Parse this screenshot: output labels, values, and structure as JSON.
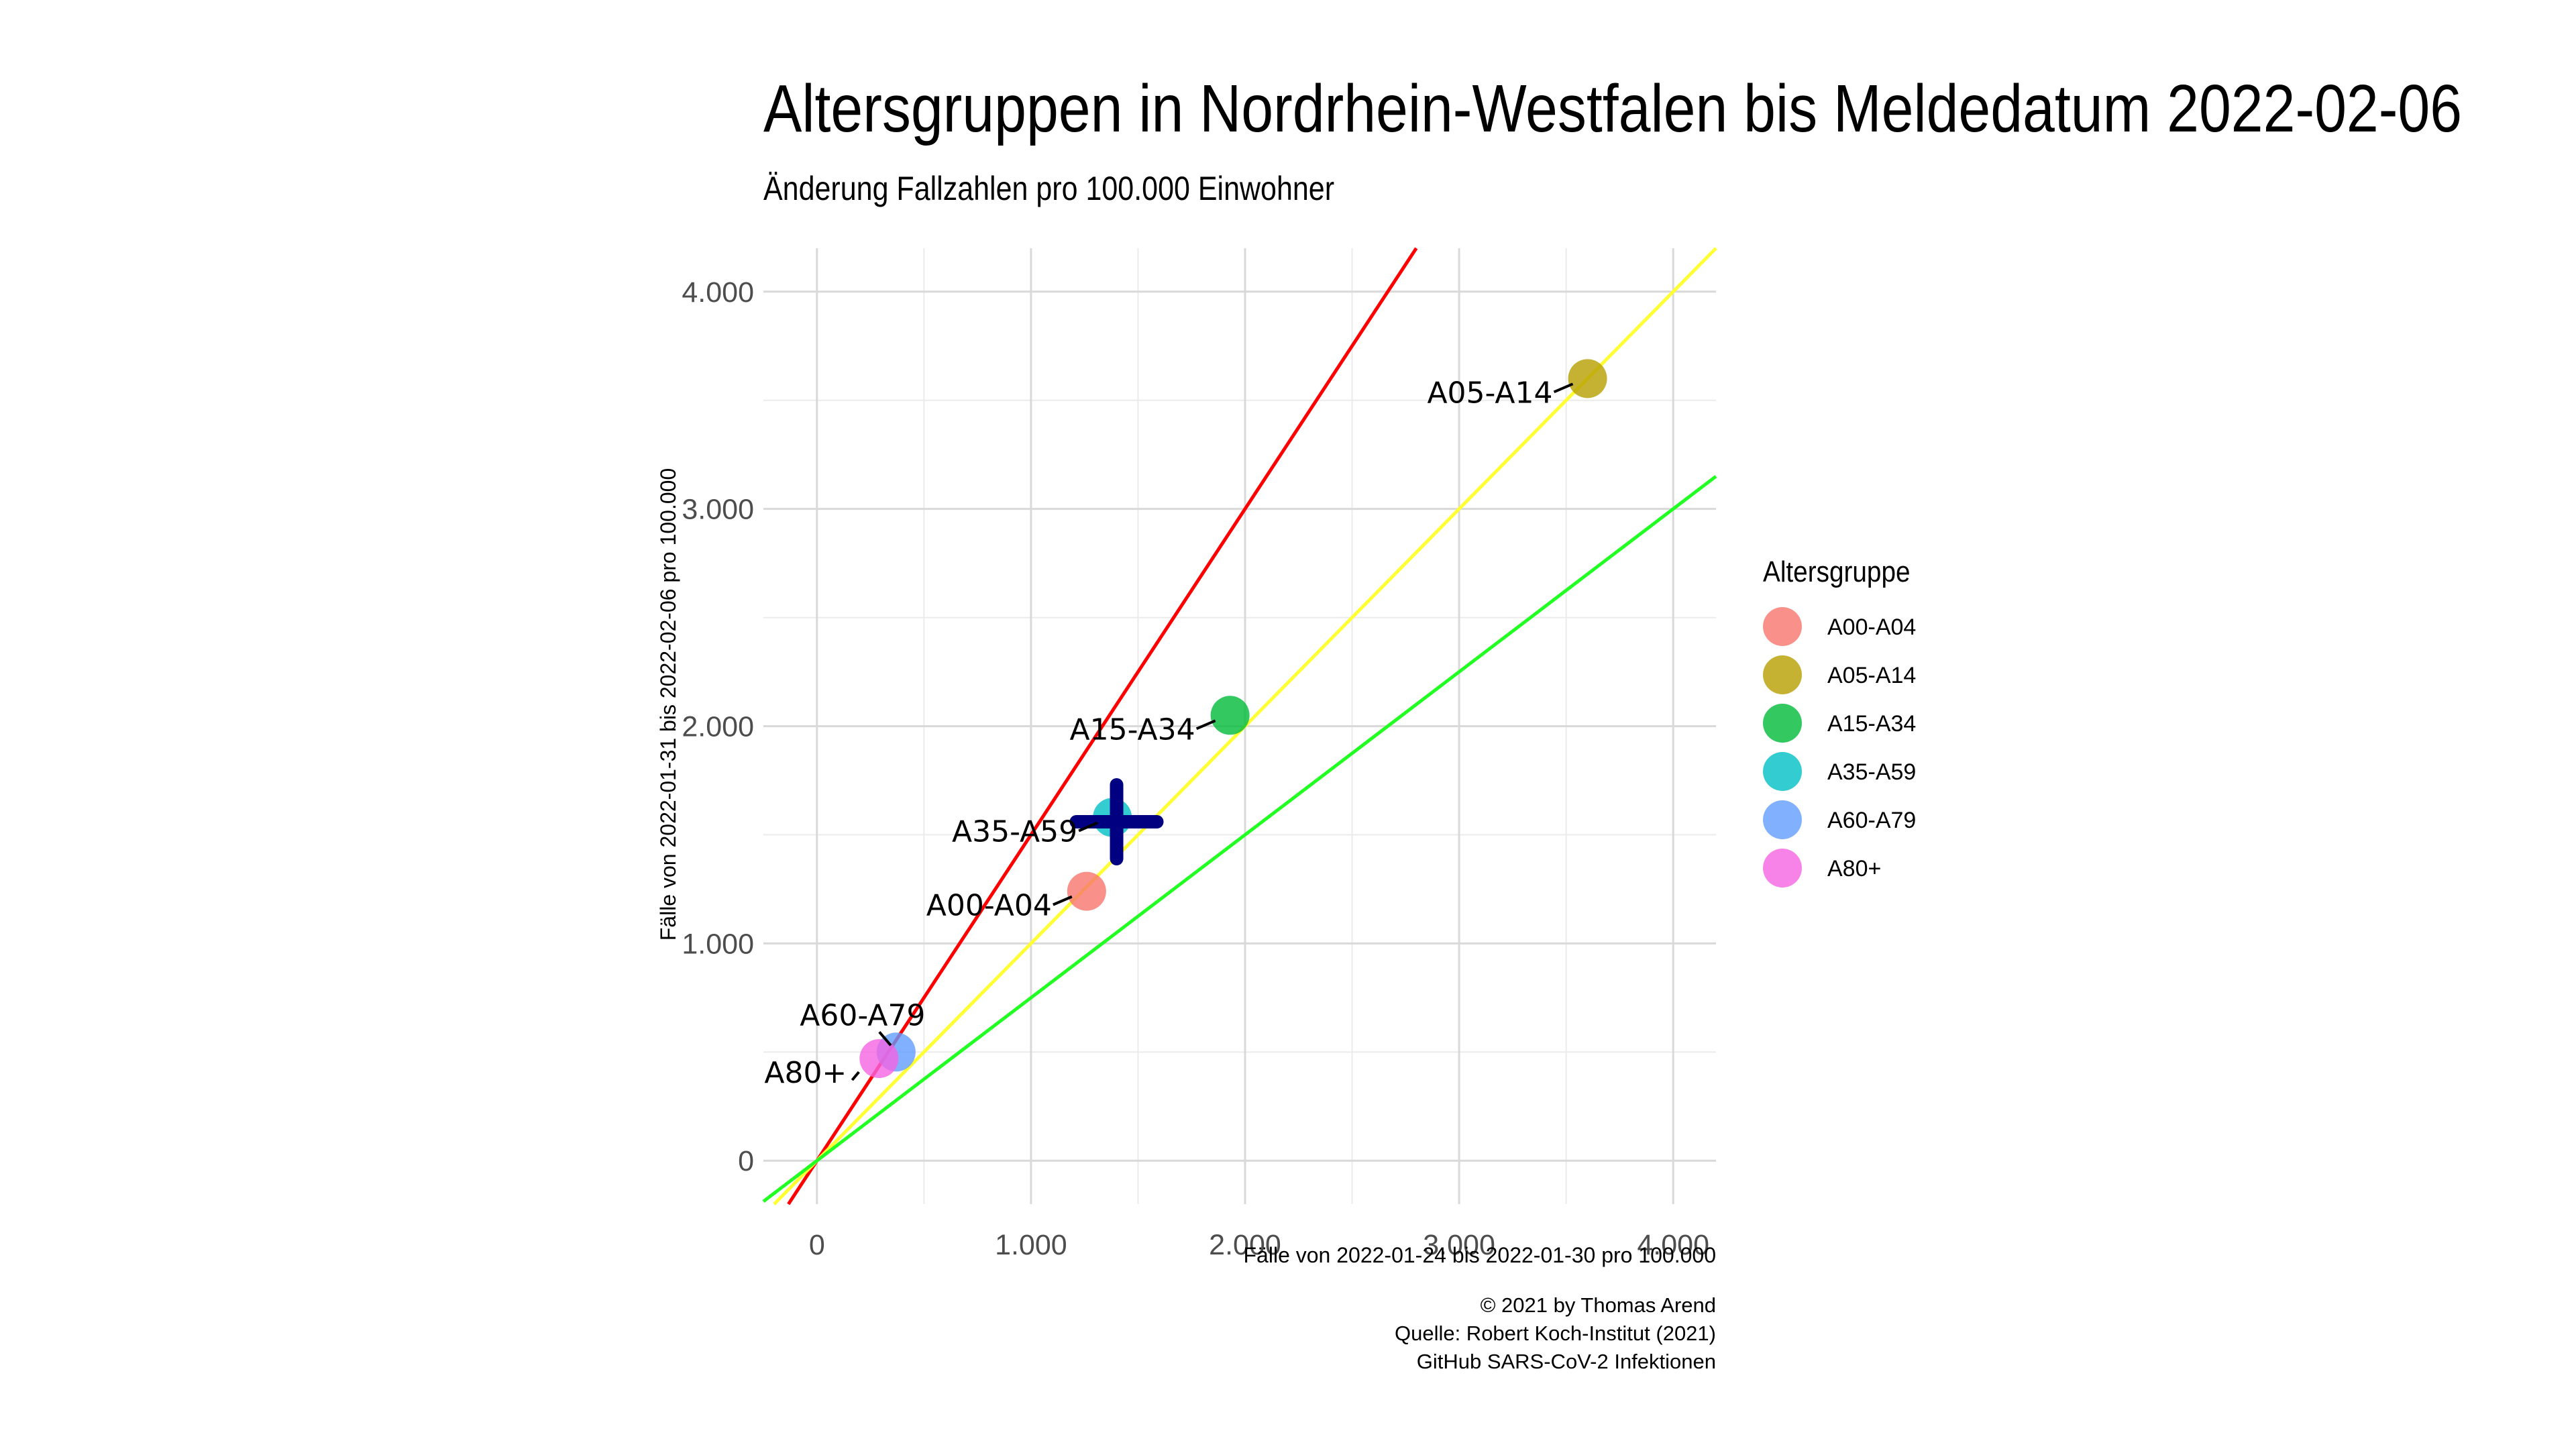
{
  "title": "Altersgruppen in Nordrhein-Westfalen bis Meldedatum 2022-02-06",
  "subtitle": "Änderung Fallzahlen pro 100.000 Einwohner",
  "caption": [
    "© 2021 by Thomas Arend",
    "Quelle: Robert Koch-Institut (2021)",
    "GitHub SARS-CoV-2 Infektionen"
  ],
  "chart_data": {
    "type": "scatter",
    "xlabel": "Fälle von 2022-01-24 bis 2022-01-30 pro 100.000",
    "ylabel": "Fälle von 2022-01-31 bis 2022-02-06 pro 100.000",
    "xlim": [
      -250,
      4200
    ],
    "ylim": [
      -200,
      4200
    ],
    "x_ticks": [
      0,
      1000,
      2000,
      3000,
      4000
    ],
    "x_tick_labels": [
      "0",
      "1.000",
      "2.000",
      "3.000",
      "4.000"
    ],
    "y_ticks": [
      0,
      1000,
      2000,
      3000,
      4000
    ],
    "y_tick_labels": [
      "0",
      "1.000",
      "2.000",
      "3.000",
      "4.000"
    ],
    "grid": true,
    "legend": {
      "title": "Altersgruppe",
      "placement": "right",
      "entries": [
        {
          "name": "A00-A04",
          "color": "#F8766D"
        },
        {
          "name": "A05-A14",
          "color": "#B79F00"
        },
        {
          "name": "A15-A34",
          "color": "#00BA38"
        },
        {
          "name": "A35-A59",
          "color": "#00BFC4"
        },
        {
          "name": "A60-A79",
          "color": "#619CFF"
        },
        {
          "name": "A80+",
          "color": "#F564E3"
        }
      ]
    },
    "points": [
      {
        "name": "A00-A04",
        "x": 1260,
        "y": 1240,
        "color": "#F8766D",
        "label_pos": "left"
      },
      {
        "name": "A05-A14",
        "x": 3600,
        "y": 3600,
        "color": "#B79F00",
        "label_pos": "left"
      },
      {
        "name": "A15-A34",
        "x": 1930,
        "y": 2050,
        "color": "#00BA38",
        "label_pos": "left"
      },
      {
        "name": "A35-A59",
        "x": 1380,
        "y": 1580,
        "color": "#00BFC4",
        "label_pos": "left"
      },
      {
        "name": "A60-A79",
        "x": 370,
        "y": 500,
        "color": "#619CFF",
        "label_pos": "above"
      },
      {
        "name": "A80+",
        "x": 290,
        "y": 470,
        "color": "#F564E3",
        "label_pos": "left"
      }
    ],
    "overall_marker": {
      "x": 1400,
      "y": 1560,
      "color": "#000080"
    },
    "reference_lines": [
      {
        "slope": 1.5,
        "color": "#FF0000"
      },
      {
        "slope": 1.0,
        "color": "#FFFF33"
      },
      {
        "slope": 0.75,
        "color": "#22FF22"
      }
    ]
  }
}
